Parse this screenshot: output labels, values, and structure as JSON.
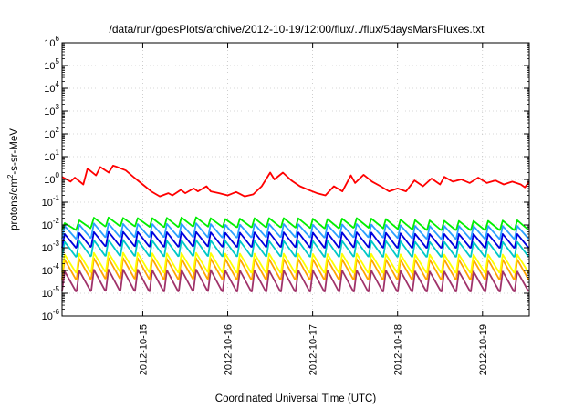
{
  "chart_data": {
    "type": "line",
    "title": "/data/run/goesPlots/archive/2012-10-19/12:00/flux/../flux/5daysMarsFluxes.txt",
    "xlabel": "Coordinated Universal Time (UTC)",
    "ylabel": "protons/cm²-s-sr-MeV",
    "ylabel_parts": {
      "pre": "protons/cm",
      "sup": "2",
      "post": "-s-sr-MeV"
    },
    "yscale": "log",
    "ylim": [
      1e-06,
      1000000.0
    ],
    "xlim": [
      14.05,
      19.55
    ],
    "x_unit_note": "day of October 2012",
    "xticks": [
      {
        "x": 15,
        "label": "2012-10-15"
      },
      {
        "x": 16,
        "label": "2012-10-16"
      },
      {
        "x": 17,
        "label": "2012-10-17"
      },
      {
        "x": 18,
        "label": "2012-10-18"
      },
      {
        "x": 19,
        "label": "2012-10-19"
      }
    ],
    "yticks": [
      {
        "exp": -6,
        "base": "10",
        "sup": "-6"
      },
      {
        "exp": -5,
        "base": "10",
        "sup": "-5"
      },
      {
        "exp": -4,
        "base": "10",
        "sup": "-4"
      },
      {
        "exp": -3,
        "base": "10",
        "sup": "-3"
      },
      {
        "exp": -2,
        "base": "10",
        "sup": "-2"
      },
      {
        "exp": -1,
        "base": "10",
        "sup": "-1"
      },
      {
        "exp": 0,
        "base": "10",
        "sup": "0"
      },
      {
        "exp": 1,
        "base": "10",
        "sup": "1"
      },
      {
        "exp": 2,
        "base": "10",
        "sup": "2"
      },
      {
        "exp": 3,
        "base": "10",
        "sup": "3"
      },
      {
        "exp": 4,
        "base": "10",
        "sup": "4"
      },
      {
        "exp": 5,
        "base": "10",
        "sup": "5"
      },
      {
        "exp": 6,
        "base": "10",
        "sup": "6"
      }
    ],
    "grid": true,
    "series": [
      {
        "color": "#ff0000",
        "x": [
          14.05,
          14.15,
          14.2,
          14.3,
          14.35,
          14.45,
          14.5,
          14.6,
          14.65,
          14.7,
          14.8,
          14.9,
          15.0,
          15.1,
          15.2,
          15.3,
          15.35,
          15.45,
          15.5,
          15.6,
          15.65,
          15.75,
          15.8,
          15.9,
          16.0,
          16.1,
          16.2,
          16.3,
          16.4,
          16.5,
          16.55,
          16.65,
          16.75,
          16.85,
          16.95,
          17.05,
          17.15,
          17.25,
          17.35,
          17.45,
          17.5,
          17.6,
          17.7,
          17.8,
          17.9,
          18.0,
          18.1,
          18.2,
          18.3,
          18.4,
          18.5,
          18.55,
          18.65,
          18.75,
          18.85,
          18.95,
          19.05,
          19.15,
          19.25,
          19.35,
          19.45,
          19.5,
          19.55
        ],
        "values": [
          1.3,
          0.8,
          1.2,
          0.6,
          3.0,
          1.5,
          3.5,
          2.0,
          4.0,
          3.5,
          2.5,
          1.2,
          0.6,
          0.3,
          0.18,
          0.25,
          0.2,
          0.35,
          0.25,
          0.4,
          0.3,
          0.5,
          0.3,
          0.25,
          0.2,
          0.28,
          0.18,
          0.22,
          0.5,
          2.0,
          1.0,
          2.0,
          0.9,
          0.5,
          0.35,
          0.25,
          0.2,
          0.5,
          0.3,
          1.5,
          0.7,
          1.6,
          0.8,
          0.5,
          0.3,
          0.4,
          0.3,
          0.9,
          0.5,
          1.1,
          0.6,
          1.3,
          0.8,
          1.0,
          0.7,
          1.2,
          0.7,
          0.9,
          0.6,
          0.8,
          0.6,
          0.45,
          0.8
        ]
      },
      {
        "color": "#00ee00",
        "cycles": {
          "count": 32,
          "start": 14.05,
          "end": 19.55,
          "peak": [
            0.012,
            0.022,
            0.02,
            0.02,
            0.022,
            0.018,
            0.02,
            0.02,
            0.018,
            0.02,
            0.018,
            0.016,
            0.015,
            0.015,
            0.016
          ],
          "trough": [
            0.006,
            0.009,
            0.009,
            0.008,
            0.009,
            0.008,
            0.008,
            0.008,
            0.007,
            0.008,
            0.007,
            0.006,
            0.006,
            0.006,
            0.006
          ]
        }
      },
      {
        "color": "#2aa0ff",
        "cycles": {
          "count": 32,
          "start": 14.05,
          "end": 19.55,
          "peak": [
            0.009,
            0.012,
            0.011,
            0.011,
            0.012,
            0.01,
            0.011,
            0.011,
            0.01,
            0.011,
            0.01,
            0.009,
            0.009,
            0.009,
            0.009
          ],
          "trough": [
            0.0025,
            0.003,
            0.003,
            0.003,
            0.003,
            0.0028,
            0.003,
            0.003,
            0.0028,
            0.003,
            0.0028,
            0.0025,
            0.0025,
            0.0025,
            0.0025
          ]
        }
      },
      {
        "color": "#0000dd",
        "cycles": {
          "count": 32,
          "start": 14.05,
          "end": 19.55,
          "peak": [
            0.004,
            0.005,
            0.005,
            0.0048,
            0.005,
            0.0045,
            0.0048,
            0.0048,
            0.0045,
            0.0048,
            0.0045,
            0.004,
            0.004,
            0.004,
            0.004
          ],
          "trough": [
            0.001,
            0.0012,
            0.0012,
            0.0011,
            0.0012,
            0.0011,
            0.0011,
            0.0011,
            0.001,
            0.0011,
            0.001,
            0.001,
            0.001,
            0.001,
            0.001
          ]
        }
      },
      {
        "color": "#00c8c8",
        "cycles": {
          "count": 32,
          "start": 14.05,
          "end": 19.55,
          "peak": [
            0.0018,
            0.0022,
            0.0022,
            0.002,
            0.0022,
            0.002,
            0.002,
            0.002,
            0.002,
            0.002,
            0.002,
            0.0018,
            0.0018,
            0.0018,
            0.0018
          ],
          "trough": [
            0.0004,
            0.00045,
            0.00045,
            0.00042,
            0.00045,
            0.00042,
            0.00042,
            0.00042,
            0.0004,
            0.00042,
            0.0004,
            0.0004,
            0.0004,
            0.0004,
            0.0004
          ]
        }
      },
      {
        "color": "#ffff00",
        "cycles": {
          "count": 32,
          "start": 14.05,
          "end": 19.55,
          "peak": [
            0.0005,
            0.0006,
            0.0006,
            0.00055,
            0.0006,
            0.00055,
            0.00055,
            0.00055,
            0.00052,
            0.00055,
            0.00052,
            0.0005,
            0.0005,
            0.0005,
            0.0005
          ],
          "trough": [
            8e-05,
            9e-05,
            9e-05,
            8e-05,
            9e-05,
            8e-05,
            8e-05,
            8e-05,
            8e-05,
            8e-05,
            8e-05,
            8e-05,
            8e-05,
            8e-05,
            8e-05
          ]
        }
      },
      {
        "color": "#ffa500",
        "cycles": {
          "count": 32,
          "start": 14.05,
          "end": 19.55,
          "peak": [
            0.0003,
            0.00035,
            0.00035,
            0.00032,
            0.00035,
            0.00032,
            0.00032,
            0.00032,
            0.0003,
            0.00032,
            0.0003,
            0.0003,
            0.0003,
            0.0003,
            0.0003
          ],
          "trough": [
            4e-05,
            4.5e-05,
            4.5e-05,
            4e-05,
            4.5e-05,
            4e-05,
            4e-05,
            4e-05,
            4e-05,
            4e-05,
            4e-05,
            4e-05,
            4e-05,
            4e-05,
            4e-05
          ]
        }
      },
      {
        "color": "#a0336a",
        "cycles": {
          "count": 32,
          "start": 14.05,
          "end": 19.55,
          "peak": [
            9e-05,
            0.00011,
            0.00011,
            0.0001,
            0.00011,
            0.0001,
            0.0001,
            0.0001,
            0.0001,
            0.0001,
            0.0001,
            9e-05,
            9e-05,
            9e-05,
            9e-05
          ],
          "trough": [
            1.2e-05,
            1.3e-05,
            1.3e-05,
            1.2e-05,
            1.3e-05,
            1.2e-05,
            1.2e-05,
            1.2e-05,
            1.2e-05,
            1.2e-05,
            1.2e-05,
            1.2e-05,
            1.2e-05,
            1.2e-05,
            1.2e-05
          ]
        }
      }
    ]
  }
}
